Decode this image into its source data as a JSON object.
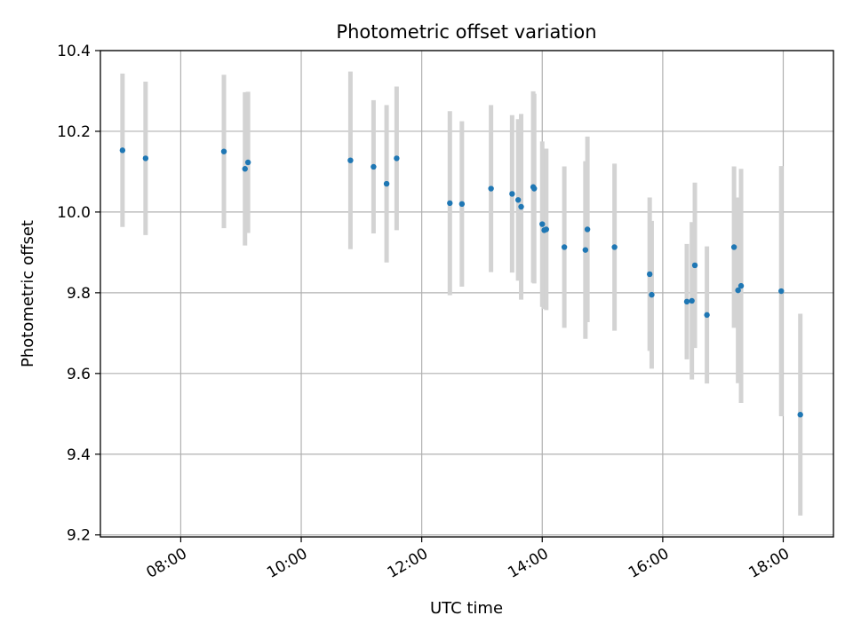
{
  "chart_data": {
    "type": "scatter",
    "title": "Photometric offset variation",
    "xlabel": "UTC time",
    "ylabel": "Photometric offset",
    "x_axis_type": "time",
    "xlim": [
      "06:40",
      "18:50"
    ],
    "ylim": [
      9.195,
      10.4
    ],
    "x_ticks": [
      "08:00",
      "10:00",
      "12:00",
      "14:00",
      "16:00",
      "18:00"
    ],
    "y_ticks": [
      9.2,
      9.4,
      9.6,
      9.8,
      10.0,
      10.2,
      10.4
    ],
    "y_tick_labels": [
      "9.2",
      "9.4",
      "9.6",
      "9.8",
      "10.0",
      "10.2",
      "10.4"
    ],
    "grid": true,
    "colors": {
      "points": "#1f77b4",
      "errorbars": "#d3d3d3",
      "grid": "#b0b0b0"
    },
    "points": [
      {
        "x": "07:02",
        "y": 10.153,
        "err": 0.19
      },
      {
        "x": "07:25",
        "y": 10.133,
        "err": 0.19
      },
      {
        "x": "08:43",
        "y": 10.15,
        "err": 0.19
      },
      {
        "x": "09:04",
        "y": 10.107,
        "err": 0.19
      },
      {
        "x": "09:07",
        "y": 10.123,
        "err": 0.175
      },
      {
        "x": "10:49",
        "y": 10.128,
        "err": 0.22
      },
      {
        "x": "11:12",
        "y": 10.112,
        "err": 0.165
      },
      {
        "x": "11:25",
        "y": 10.07,
        "err": 0.195
      },
      {
        "x": "11:35",
        "y": 10.133,
        "err": 0.178
      },
      {
        "x": "12:28",
        "y": 10.022,
        "err": 0.228
      },
      {
        "x": "12:40",
        "y": 10.02,
        "err": 0.205
      },
      {
        "x": "13:09",
        "y": 10.058,
        "err": 0.207
      },
      {
        "x": "13:30",
        "y": 10.045,
        "err": 0.195
      },
      {
        "x": "13:36",
        "y": 10.03,
        "err": 0.2
      },
      {
        "x": "13:39",
        "y": 10.013,
        "err": 0.23
      },
      {
        "x": "13:51",
        "y": 10.062,
        "err": 0.237
      },
      {
        "x": "13:52",
        "y": 10.058,
        "err": 0.235
      },
      {
        "x": "14:00",
        "y": 9.97,
        "err": 0.205
      },
      {
        "x": "14:02",
        "y": 9.955,
        "err": 0.195
      },
      {
        "x": "14:04",
        "y": 9.957,
        "err": 0.2
      },
      {
        "x": "14:22",
        "y": 9.913,
        "err": 0.2
      },
      {
        "x": "14:43",
        "y": 9.906,
        "err": 0.22
      },
      {
        "x": "14:45",
        "y": 9.957,
        "err": 0.23
      },
      {
        "x": "15:12",
        "y": 9.913,
        "err": 0.207
      },
      {
        "x": "15:47",
        "y": 9.846,
        "err": 0.19
      },
      {
        "x": "15:49",
        "y": 9.795,
        "err": 0.183
      },
      {
        "x": "16:24",
        "y": 9.778,
        "err": 0.143
      },
      {
        "x": "16:29",
        "y": 9.78,
        "err": 0.195
      },
      {
        "x": "16:32",
        "y": 9.868,
        "err": 0.205
      },
      {
        "x": "16:44",
        "y": 9.745,
        "err": 0.17
      },
      {
        "x": "17:11",
        "y": 9.913,
        "err": 0.2
      },
      {
        "x": "17:15",
        "y": 9.806,
        "err": 0.23
      },
      {
        "x": "17:18",
        "y": 9.817,
        "err": 0.29
      },
      {
        "x": "17:58",
        "y": 9.804,
        "err": 0.31
      },
      {
        "x": "18:17",
        "y": 9.498,
        "err": 0.25
      }
    ]
  }
}
